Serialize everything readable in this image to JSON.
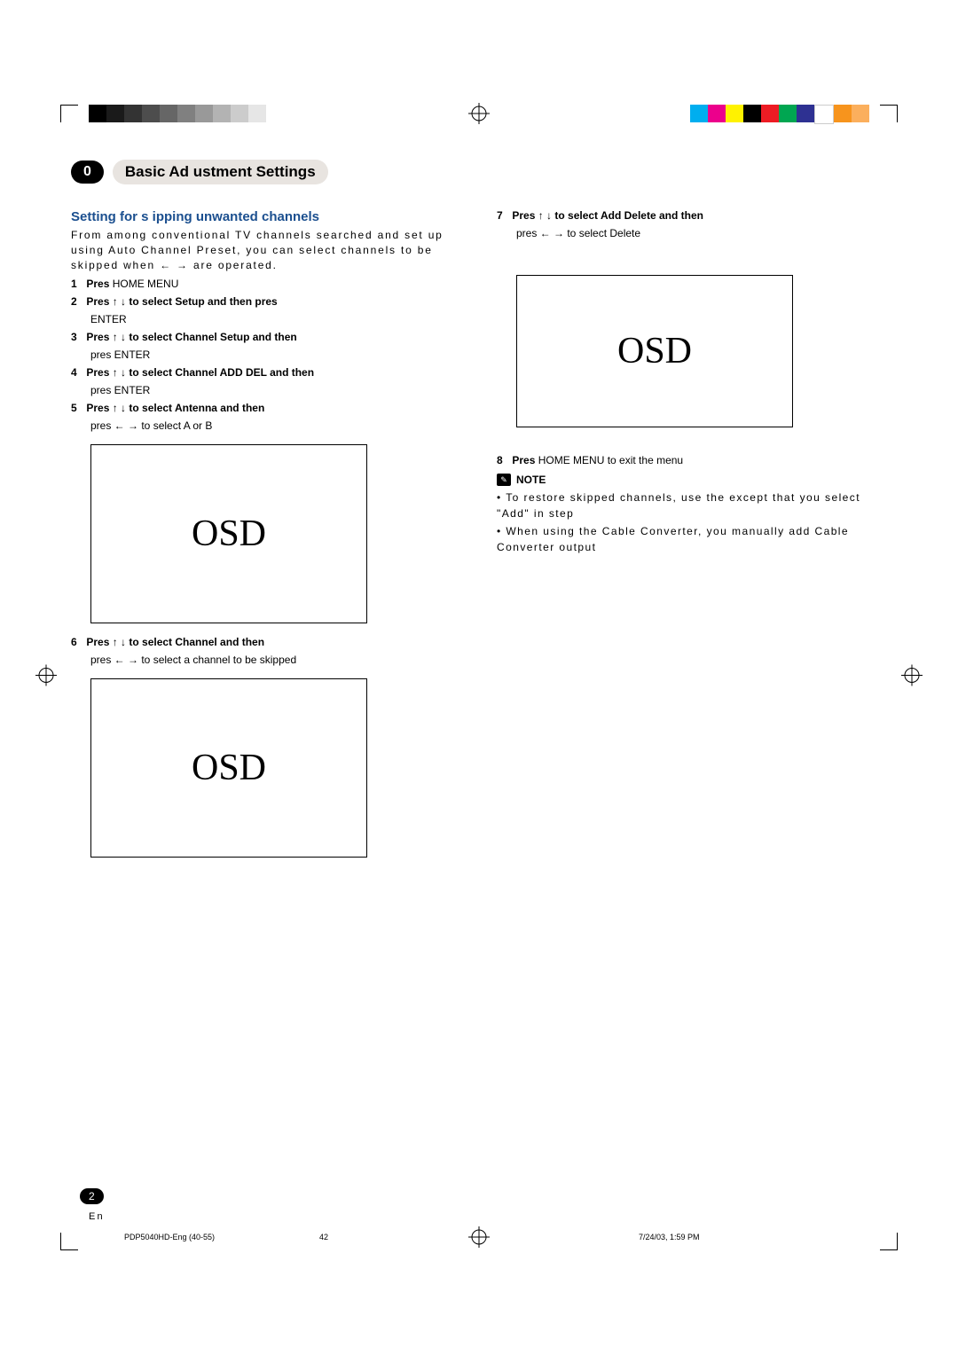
{
  "chapter_number": "0",
  "chapter_title": "Basic Ad ustment Settings",
  "section_heading": "Setting for s ipping unwanted channels",
  "intro_text": "From among conventional TV channels searched and set up using Auto Channel Preset, you can select channels to be skipped when ← → are operated.",
  "steps": {
    "s1": {
      "num": "1",
      "bold": "Pres",
      "rest": " HOME MENU"
    },
    "s2": {
      "num": "2",
      "bold": "Pres ↑ ↓ to select Setup and then pres",
      "rest": "",
      "enter": "ENTER"
    },
    "s3": {
      "num": "3",
      "bold": "Pres ↑ ↓ to select Channel Setup and then",
      "rest": "",
      "enter": "pres   ENTER"
    },
    "s4": {
      "num": "4",
      "bold": "Pres ↑ ↓ to select Channel ADD DEL  and then",
      "rest": "",
      "enter": "pres   ENTER"
    },
    "s5": {
      "num": "5",
      "bold": "Pres ↑ ↓ to select Antenna  and then",
      "rest": "",
      "enter": "pres   ← → to select A or B"
    },
    "s6": {
      "num": "6",
      "bold": "Pres ↑ ↓ to select Channel  and then",
      "rest": "",
      "enter": "pres   ← → to select a channel to be skipped"
    },
    "s7": {
      "num": "7",
      "bold": "Pres ↑ ↓ to select Add Delete  and then",
      "rest": "",
      "enter": "pres   ← → to select Delete"
    },
    "s8": {
      "num": "8",
      "bold": "Pres",
      "rest": " HOME MENU to exit the menu"
    }
  },
  "osd_label": "OSD",
  "note_label": "NOTE",
  "note_bullets": [
    "• To restore skipped channels, use the except that you select \"Add\" in step",
    "• When using the Cable Converter, you manually add Cable Converter output"
  ],
  "page_number": "2",
  "lang": "En",
  "footer": {
    "left": "PDP5040HD-Eng (40-55)",
    "mid": "42",
    "right": "7/24/03, 1:59 PM"
  },
  "grayscale": [
    "#000000",
    "#1a1a1a",
    "#333333",
    "#4d4d4d",
    "#666666",
    "#808080",
    "#999999",
    "#b3b3b3",
    "#cccccc",
    "#e6e6e6"
  ],
  "color_swatches": [
    "#00aeef",
    "#ec008c",
    "#fff200",
    "#000000",
    "#ed1c24",
    "#00a651",
    "#2e3192",
    "#ffffff",
    "#f7941d",
    "#fbaf5d"
  ],
  "colors": {
    "heading": "#1b4f8f",
    "chapter_bg": "#e8e4e0"
  }
}
